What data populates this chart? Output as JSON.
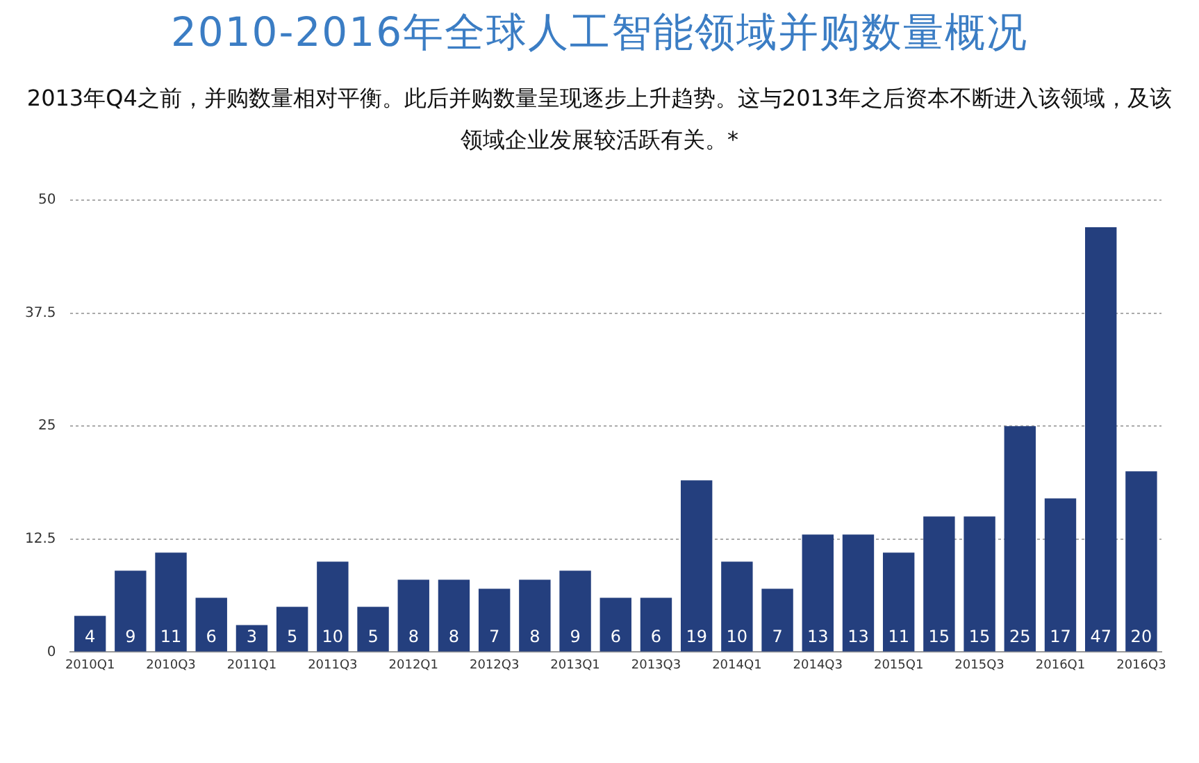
{
  "chart_data": {
    "type": "bar",
    "title": "2010-2016年全球人工智能领域并购数量概况",
    "subtitle": "2013年Q4之前，并购数量相对平衡。此后并购数量呈现逐步上升趋势。这与2013年之后资本不断进入该领域，及该领域企业发展较活跃有关。*",
    "categories": [
      "2010Q1",
      null,
      "2010Q3",
      null,
      "2011Q1",
      null,
      "2011Q3",
      null,
      "2012Q1",
      null,
      "2012Q3",
      null,
      "2013Q1",
      null,
      "2013Q3",
      null,
      "2014Q1",
      null,
      "2014Q3",
      null,
      "2015Q1",
      null,
      "2015Q3",
      null,
      "2016Q1",
      null,
      "2016Q3"
    ],
    "values": [
      4,
      9,
      11,
      6,
      3,
      5,
      10,
      5,
      8,
      8,
      7,
      8,
      9,
      6,
      6,
      19,
      10,
      7,
      13,
      13,
      11,
      15,
      15,
      25,
      17,
      47,
      20
    ],
    "color": "#243f7e",
    "ylim": [
      0,
      50
    ],
    "yticks": [
      0,
      12.5,
      25,
      37.5,
      50
    ],
    "grid": "y",
    "data_labels": true
  }
}
